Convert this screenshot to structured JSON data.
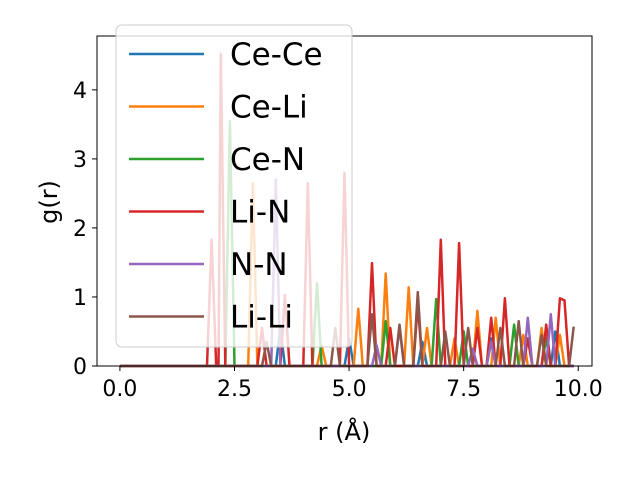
{
  "chart_data": {
    "type": "line",
    "xlabel": "r (Å)",
    "ylabel": "g(r)",
    "xlim": [
      -0.5,
      10.3
    ],
    "ylim": [
      0,
      4.78
    ],
    "xticks": [
      0.0,
      2.5,
      5.0,
      7.5,
      10.0
    ],
    "xtick_labels": [
      "0.0",
      "2.5",
      "5.0",
      "7.5",
      "10.0"
    ],
    "yticks": [
      0,
      1,
      2,
      3,
      4
    ],
    "ytick_labels": [
      "0",
      "1",
      "2",
      "3",
      "4"
    ],
    "grid": false,
    "legend_position": "upper-left",
    "series": [
      {
        "name": "Ce-Ce",
        "color": "#1f77b4",
        "points": [
          [
            0,
            0
          ],
          [
            3.4,
            0
          ],
          [
            3.5,
            0.55
          ],
          [
            3.6,
            0
          ],
          [
            4.9,
            0
          ],
          [
            5.0,
            0.4
          ],
          [
            5.1,
            0
          ],
          [
            6.5,
            0
          ],
          [
            6.6,
            0.35
          ],
          [
            6.7,
            0
          ],
          [
            8.0,
            0
          ],
          [
            8.1,
            0.4
          ],
          [
            8.2,
            0
          ],
          [
            9.4,
            0
          ],
          [
            9.5,
            0.5
          ],
          [
            9.6,
            0
          ],
          [
            9.9,
            0
          ]
        ]
      },
      {
        "name": "Ce-Li",
        "color": "#ff7f0e",
        "points": [
          [
            0,
            0
          ],
          [
            2.8,
            0
          ],
          [
            2.9,
            2.65
          ],
          [
            3.0,
            0
          ],
          [
            4.3,
            0
          ],
          [
            4.4,
            0.3
          ],
          [
            4.5,
            0
          ],
          [
            5.1,
            0
          ],
          [
            5.2,
            0.83
          ],
          [
            5.3,
            0
          ],
          [
            5.7,
            0
          ],
          [
            5.8,
            1.34
          ],
          [
            5.9,
            0
          ],
          [
            6.2,
            0
          ],
          [
            6.3,
            1.14
          ],
          [
            6.4,
            0
          ],
          [
            6.6,
            0
          ],
          [
            6.7,
            0.55
          ],
          [
            6.8,
            0
          ],
          [
            7.2,
            0
          ],
          [
            7.3,
            0.4
          ],
          [
            7.4,
            0
          ],
          [
            7.7,
            0
          ],
          [
            7.8,
            0.8
          ],
          [
            7.9,
            0
          ],
          [
            8.1,
            0
          ],
          [
            8.2,
            0.7
          ],
          [
            8.3,
            0
          ],
          [
            8.7,
            0
          ],
          [
            8.8,
            0.45
          ],
          [
            8.9,
            0
          ],
          [
            9.1,
            0
          ],
          [
            9.2,
            0.55
          ],
          [
            9.3,
            0
          ],
          [
            9.5,
            0
          ],
          [
            9.6,
            0.45
          ],
          [
            9.7,
            0
          ],
          [
            9.9,
            0
          ]
        ]
      },
      {
        "name": "Ce-N",
        "color": "#2ca02c",
        "points": [
          [
            0,
            0
          ],
          [
            2.3,
            0
          ],
          [
            2.4,
            3.55
          ],
          [
            2.5,
            0
          ],
          [
            4.2,
            0
          ],
          [
            4.3,
            1.2
          ],
          [
            4.4,
            0
          ],
          [
            5.7,
            0
          ],
          [
            5.8,
            0.65
          ],
          [
            5.9,
            0
          ],
          [
            6.8,
            0
          ],
          [
            6.9,
            0.97
          ],
          [
            7.0,
            0
          ],
          [
            7.4,
            0
          ],
          [
            7.5,
            0.5
          ],
          [
            7.6,
            0
          ],
          [
            8.5,
            0
          ],
          [
            8.6,
            0.6
          ],
          [
            8.7,
            0
          ],
          [
            9.2,
            0
          ],
          [
            9.3,
            0.4
          ],
          [
            9.4,
            0
          ],
          [
            9.9,
            0
          ]
        ]
      },
      {
        "name": "Li-N",
        "color": "#d62728",
        "points": [
          [
            0,
            0
          ],
          [
            1.9,
            0
          ],
          [
            2.0,
            1.83
          ],
          [
            2.1,
            0
          ],
          [
            2.15,
            0
          ],
          [
            2.2,
            4.52
          ],
          [
            2.3,
            0
          ],
          [
            3.0,
            0
          ],
          [
            3.1,
            0.55
          ],
          [
            3.2,
            0
          ],
          [
            3.5,
            0
          ],
          [
            3.6,
            1.03
          ],
          [
            3.7,
            0
          ],
          [
            4.0,
            0
          ],
          [
            4.1,
            2.65
          ],
          [
            4.2,
            0
          ],
          [
            4.8,
            0
          ],
          [
            4.9,
            2.8
          ],
          [
            5.0,
            0
          ],
          [
            5.4,
            0
          ],
          [
            5.5,
            1.49
          ],
          [
            5.6,
            0
          ],
          [
            5.8,
            0
          ],
          [
            5.9,
            0.55
          ],
          [
            6.0,
            0
          ],
          [
            6.4,
            0
          ],
          [
            6.5,
            0.9
          ],
          [
            6.6,
            0
          ],
          [
            6.9,
            0
          ],
          [
            7.0,
            1.83
          ],
          [
            7.1,
            0
          ],
          [
            7.3,
            0
          ],
          [
            7.4,
            1.78
          ],
          [
            7.5,
            0
          ],
          [
            7.7,
            0
          ],
          [
            7.8,
            0.55
          ],
          [
            7.9,
            0
          ],
          [
            8.0,
            0
          ],
          [
            8.1,
            0.7
          ],
          [
            8.2,
            0
          ],
          [
            8.3,
            0
          ],
          [
            8.4,
            0.98
          ],
          [
            8.5,
            0
          ],
          [
            8.8,
            0
          ],
          [
            8.9,
            0.4
          ],
          [
            9.0,
            0
          ],
          [
            9.2,
            0
          ],
          [
            9.3,
            0.6
          ],
          [
            9.4,
            0
          ],
          [
            9.5,
            0
          ],
          [
            9.6,
            0.98
          ],
          [
            9.7,
            0.95
          ],
          [
            9.8,
            0
          ],
          [
            9.9,
            0
          ]
        ]
      },
      {
        "name": "N-N",
        "color": "#9467bd",
        "points": [
          [
            0,
            0
          ],
          [
            3.3,
            0
          ],
          [
            3.4,
            2.7
          ],
          [
            3.5,
            0
          ],
          [
            5.5,
            0
          ],
          [
            5.6,
            0.3
          ],
          [
            5.7,
            0
          ],
          [
            6.0,
            0
          ],
          [
            6.1,
            0.55
          ],
          [
            6.2,
            0
          ],
          [
            7.6,
            0
          ],
          [
            7.7,
            0.25
          ],
          [
            7.8,
            0
          ],
          [
            8.0,
            0
          ],
          [
            8.1,
            0.35
          ],
          [
            8.2,
            0
          ],
          [
            8.8,
            0
          ],
          [
            8.9,
            0.7
          ],
          [
            9.0,
            0
          ],
          [
            9.3,
            0
          ],
          [
            9.4,
            0.75
          ],
          [
            9.5,
            0
          ],
          [
            9.9,
            0
          ]
        ]
      },
      {
        "name": "Li-Li",
        "color": "#8c564b",
        "points": [
          [
            0,
            0
          ],
          [
            3.1,
            0
          ],
          [
            3.2,
            0.35
          ],
          [
            3.3,
            0
          ],
          [
            4.6,
            0
          ],
          [
            4.7,
            0.55
          ],
          [
            4.8,
            0
          ],
          [
            5.4,
            0
          ],
          [
            5.5,
            0.75
          ],
          [
            5.6,
            0
          ],
          [
            6.0,
            0
          ],
          [
            6.1,
            0.6
          ],
          [
            6.2,
            0
          ],
          [
            6.4,
            0
          ],
          [
            6.5,
            1.07
          ],
          [
            6.6,
            0
          ],
          [
            7.0,
            0
          ],
          [
            7.1,
            0.5
          ],
          [
            7.2,
            0
          ],
          [
            7.5,
            0
          ],
          [
            7.6,
            0.55
          ],
          [
            7.7,
            0
          ],
          [
            8.2,
            0
          ],
          [
            8.3,
            0.55
          ],
          [
            8.4,
            0
          ],
          [
            8.6,
            0
          ],
          [
            8.7,
            0.65
          ],
          [
            8.8,
            0
          ],
          [
            9.1,
            0
          ],
          [
            9.2,
            0.45
          ],
          [
            9.3,
            0
          ],
          [
            9.8,
            0
          ],
          [
            9.9,
            0.57
          ]
        ]
      }
    ]
  }
}
